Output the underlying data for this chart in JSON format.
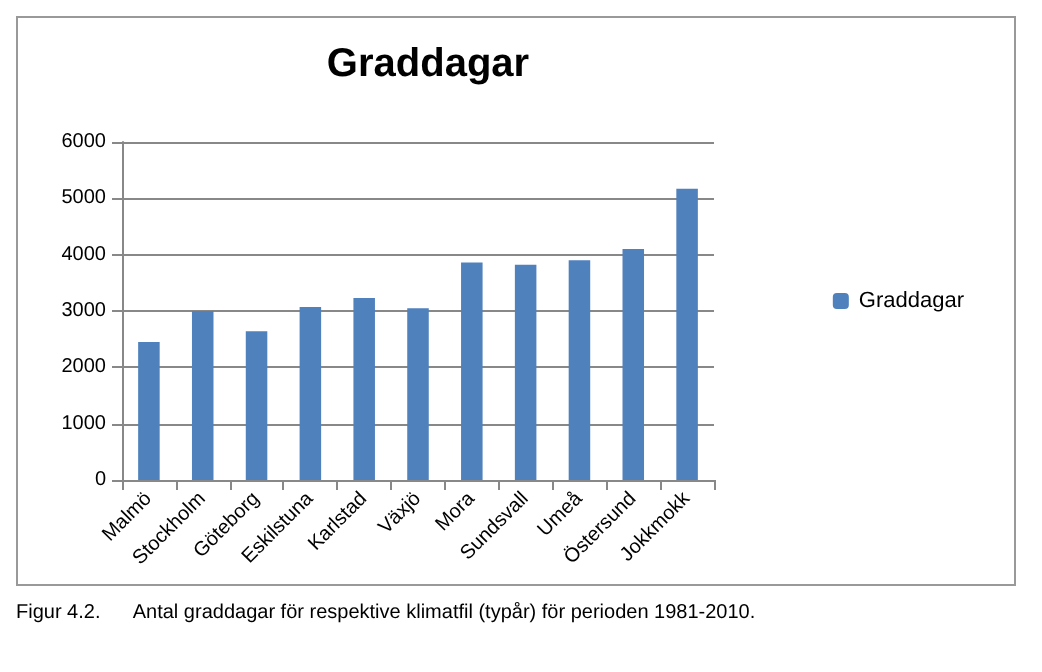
{
  "chart_data": {
    "type": "bar",
    "title": "Graddagar",
    "categories": [
      "Malmö",
      "Stockholm",
      "Göteborg",
      "Eskilstuna",
      "Karlstad",
      "Växjö",
      "Mora",
      "Sundsvall",
      "Umeå",
      "Östersund",
      "Jokkmokk"
    ],
    "series": [
      {
        "name": "Graddagar",
        "color": "#4f81bd",
        "values": [
          2450,
          3000,
          2640,
          3070,
          3230,
          3050,
          3860,
          3820,
          3900,
          4100,
          5170
        ]
      }
    ],
    "ylim": [
      0,
      6000
    ],
    "yticks": [
      0,
      1000,
      2000,
      3000,
      4000,
      5000,
      6000
    ],
    "grid": "y",
    "legend": "right",
    "annotations": [
      "Figur 4.2.      Antal graddagar för respektive klimatfil (typår) för perioden 1981-2010."
    ]
  }
}
